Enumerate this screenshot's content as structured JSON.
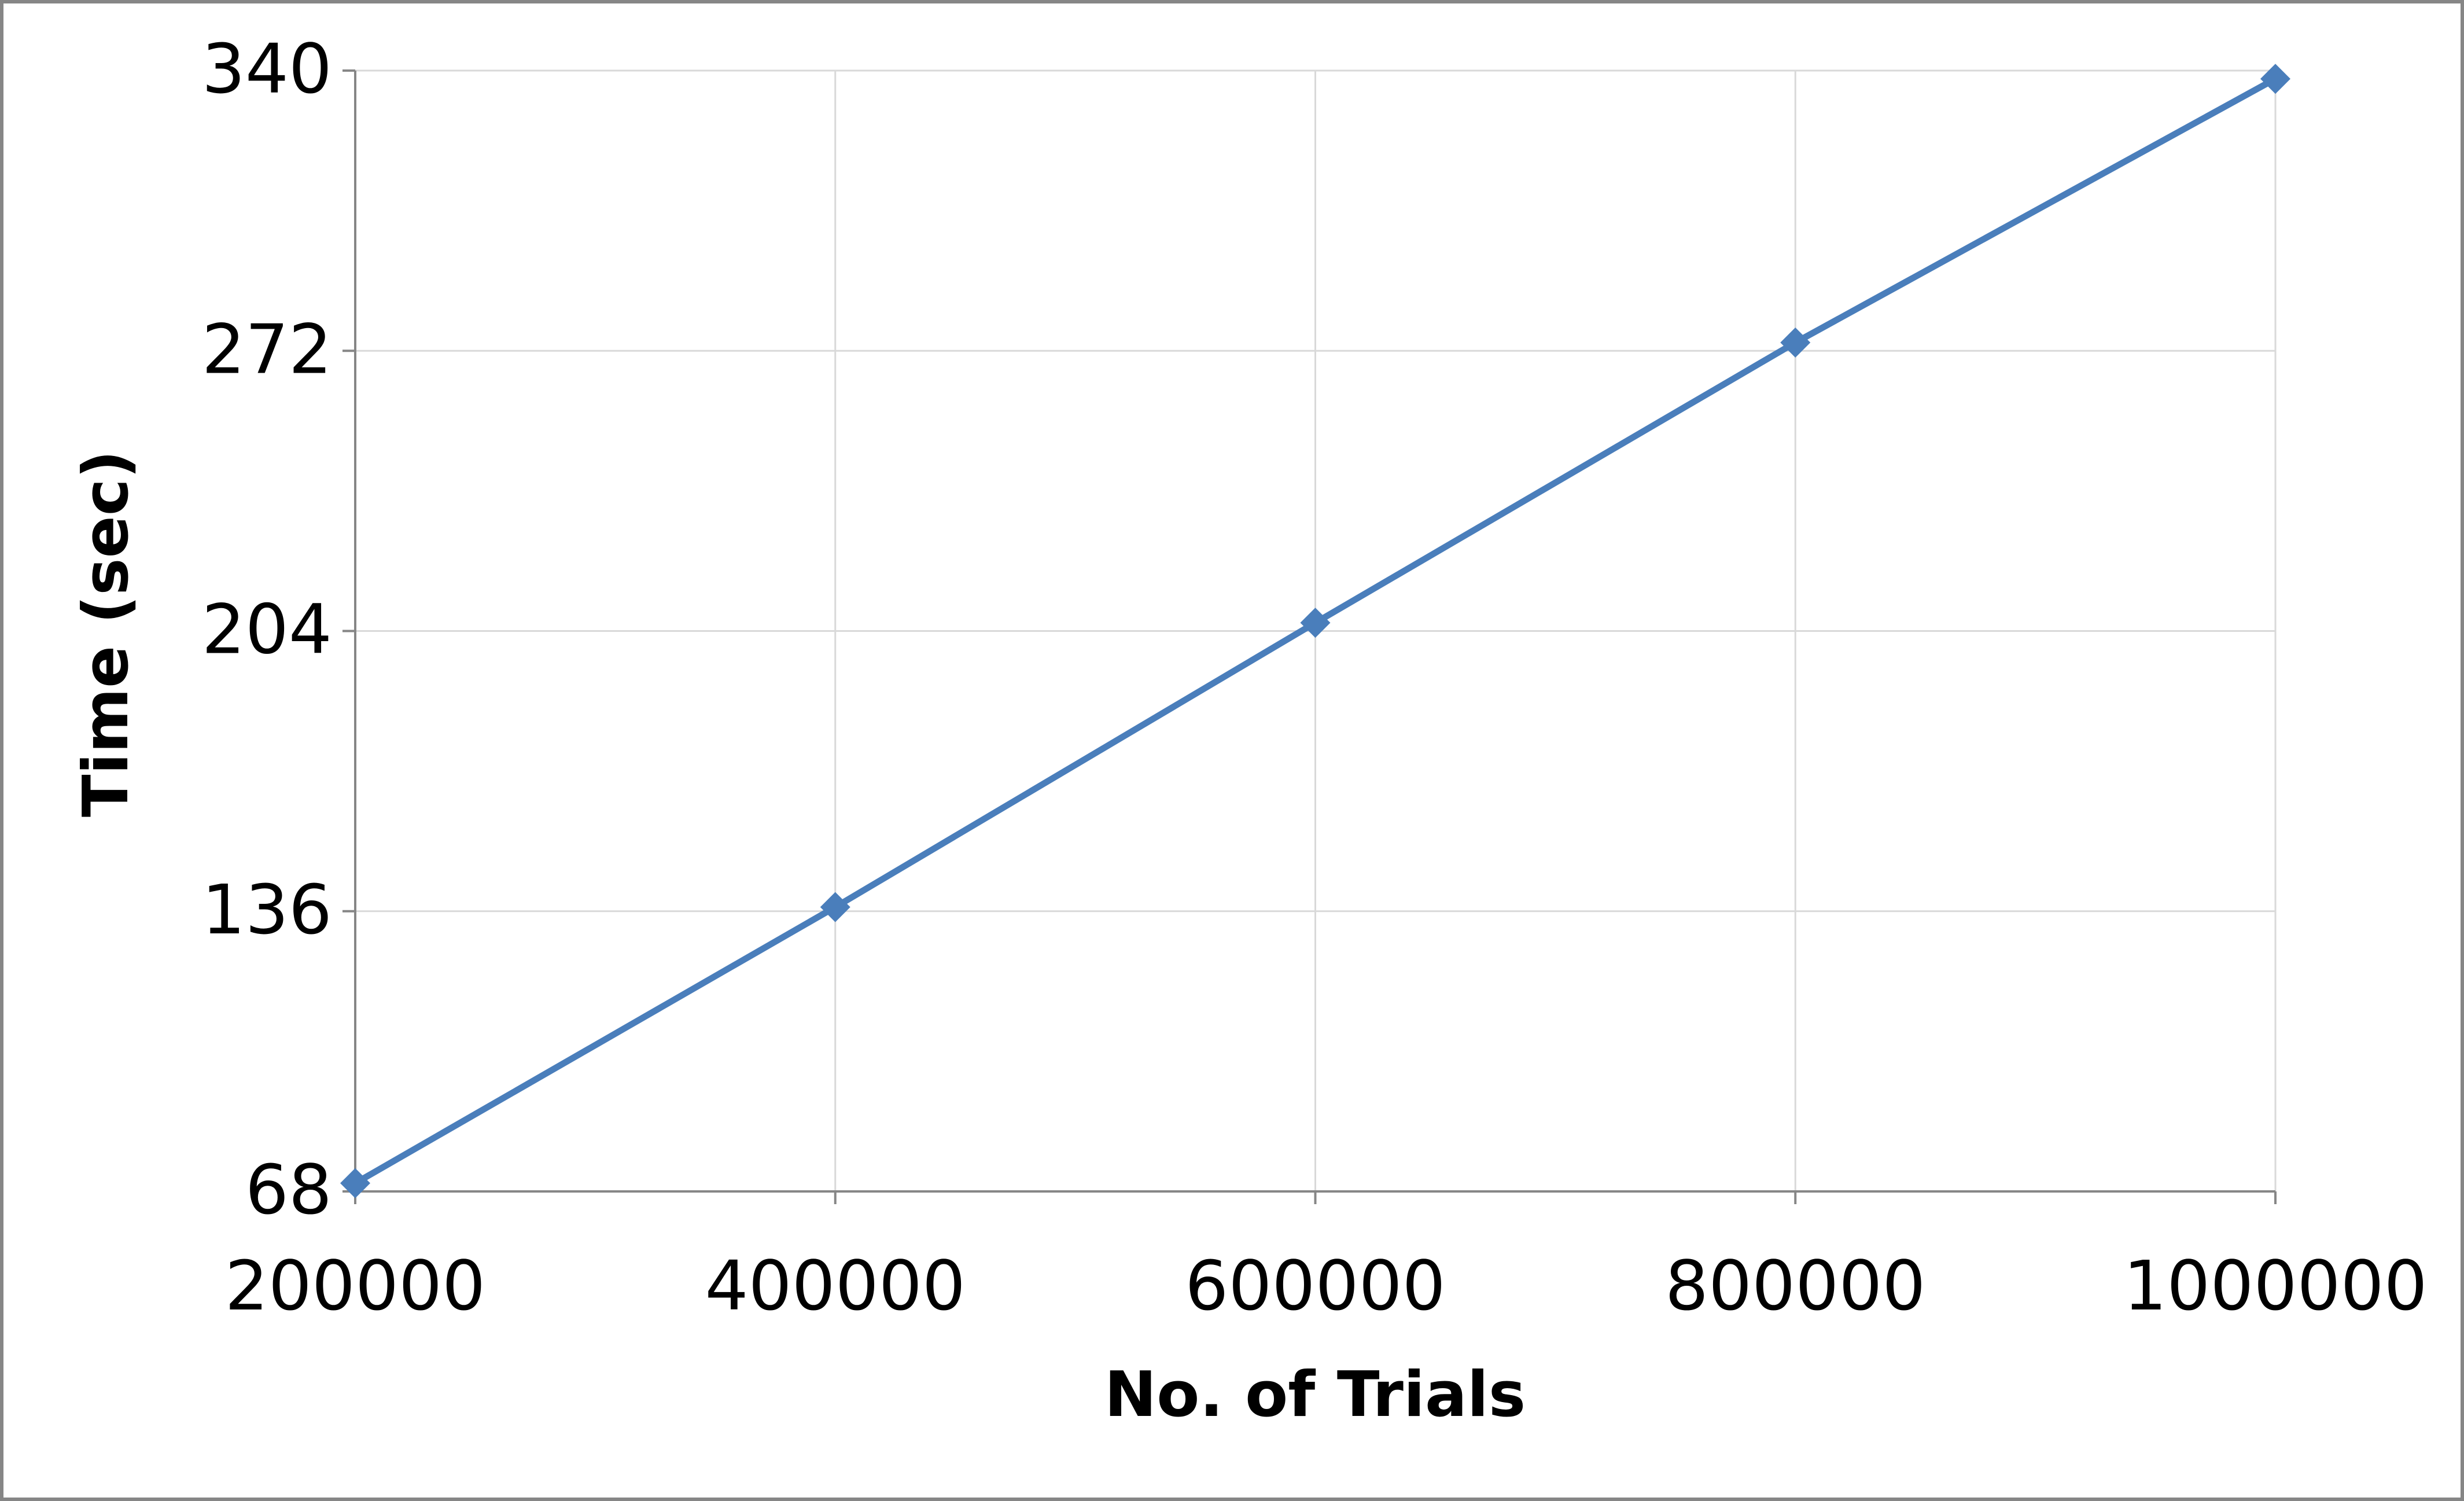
{
  "chart_data": {
    "type": "line",
    "x_label": "No. of Trials",
    "y_label": "Time (sec)",
    "x": [
      200000,
      400000,
      600000,
      800000,
      1000000
    ],
    "series": [
      {
        "name": "Time",
        "color": "#4a7ebb",
        "values": [
          70,
          137,
          206,
          274,
          338
        ]
      }
    ],
    "xlim": [
      200000,
      1000000
    ],
    "xticks": [
      200000,
      400000,
      600000,
      800000,
      1000000
    ],
    "ylim": [
      68,
      340
    ],
    "yticks": [
      68,
      136,
      204,
      272,
      340
    ],
    "grid": true,
    "marker": "diamond"
  }
}
